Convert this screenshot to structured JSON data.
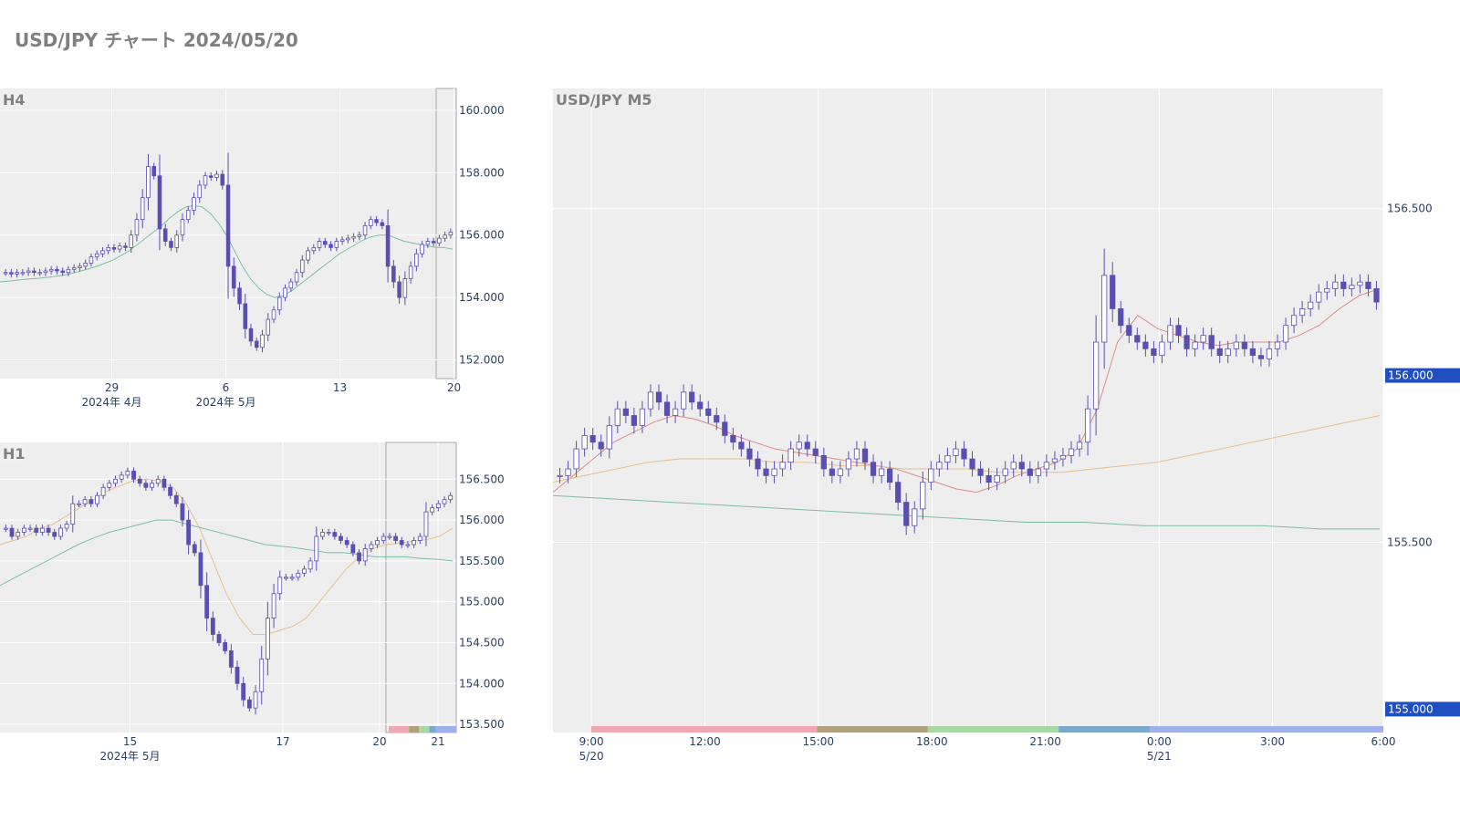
{
  "page": {
    "title": "USD/JPY チャート 2024/05/20"
  },
  "colors": {
    "candle": "#5a4fb0",
    "ma_short": "#e08a8a",
    "ma_mid": "#e8c08a",
    "ma_long": "#7ec0a0",
    "badge": "#1f4fc0",
    "session_bands": [
      "#f0a8b0",
      "#b0a080",
      "#a8d8a8",
      "#7aa8c8",
      "#a0b0ec"
    ]
  },
  "chart_data": [
    {
      "id": "h4",
      "type": "candlestick",
      "title": "H4",
      "ylim": [
        151.4,
        160.7
      ],
      "y_ticks": [
        152.0,
        154.0,
        156.0,
        158.0,
        160.0
      ],
      "y_tick_labels": [
        "152.000",
        "154.000",
        "156.000",
        "158.000",
        "160.000"
      ],
      "x_ticks": [
        {
          "label": "29",
          "sub": "2024年 4月",
          "pos": 0.245
        },
        {
          "label": "6",
          "sub": "2024年 5月",
          "pos": 0.495
        },
        {
          "label": "13",
          "sub": "",
          "pos": 0.745
        },
        {
          "label": "20",
          "sub": "",
          "pos": 0.995
        }
      ],
      "close_series": [
        154.8,
        154.75,
        154.8,
        154.8,
        154.85,
        154.8,
        154.8,
        154.85,
        154.9,
        154.85,
        154.8,
        154.9,
        154.95,
        155.0,
        155.1,
        155.3,
        155.4,
        155.5,
        155.6,
        155.55,
        155.65,
        155.6,
        156.0,
        156.5,
        157.2,
        158.2,
        157.9,
        156.2,
        155.8,
        155.6,
        156.0,
        156.5,
        156.8,
        157.2,
        157.6,
        157.9,
        157.85,
        157.95,
        157.6,
        155.0,
        154.3,
        153.8,
        153.0,
        152.6,
        152.4,
        152.8,
        153.3,
        153.6,
        154.0,
        154.3,
        154.5,
        154.8,
        155.2,
        155.5,
        155.6,
        155.8,
        155.7,
        155.6,
        155.8,
        155.85,
        155.9,
        155.95,
        156.0,
        156.3,
        156.5,
        156.4,
        156.3,
        155.0,
        154.5,
        154.0,
        154.6,
        155.0,
        155.4,
        155.7,
        155.8,
        155.75,
        155.9,
        156.0,
        156.1
      ],
      "ma_series": [
        {
          "name": "",
          "color_key": "ma_long",
          "values": [
            154.5,
            154.52,
            154.55,
            154.58,
            154.6,
            154.62,
            154.65,
            154.68,
            154.72,
            154.78,
            154.85,
            154.92,
            155.0,
            155.1,
            155.2,
            155.35,
            155.5,
            155.7,
            155.9,
            156.1,
            156.3,
            156.55,
            156.75,
            156.9,
            156.95,
            156.9,
            156.7,
            156.4,
            156.0,
            155.5,
            155.0,
            154.6,
            154.3,
            154.1,
            154.0,
            154.05,
            154.2,
            154.4,
            154.6,
            154.8,
            155.0,
            155.2,
            155.4,
            155.55,
            155.7,
            155.85,
            155.95,
            156.0,
            156.0,
            155.9,
            155.8,
            155.75,
            155.7,
            155.65,
            155.6,
            155.6,
            155.55
          ]
        }
      ]
    },
    {
      "id": "h1",
      "type": "candlestick",
      "title": "H1",
      "ylim": [
        153.4,
        156.95
      ],
      "y_ticks": [
        153.5,
        154.0,
        154.5,
        155.0,
        155.5,
        156.0,
        156.5
      ],
      "y_tick_labels": [
        "153.500",
        "154.000",
        "154.500",
        "155.000",
        "155.500",
        "156.000",
        "156.500"
      ],
      "x_ticks": [
        {
          "label": "15",
          "sub": "2024年 5月",
          "pos": 0.285
        },
        {
          "label": "17",
          "sub": "",
          "pos": 0.62
        },
        {
          "label": "20",
          "sub": "",
          "pos": 0.832
        },
        {
          "label": "21",
          "sub": "",
          "pos": 0.96
        }
      ],
      "close_series": [
        155.9,
        155.8,
        155.85,
        155.9,
        155.9,
        155.85,
        155.9,
        155.85,
        155.8,
        155.9,
        155.95,
        156.2,
        156.2,
        156.25,
        156.2,
        156.3,
        156.4,
        156.45,
        156.5,
        156.55,
        156.6,
        156.5,
        156.45,
        156.4,
        156.45,
        156.5,
        156.4,
        156.3,
        156.2,
        156.0,
        155.7,
        155.6,
        155.2,
        154.8,
        154.6,
        154.5,
        154.4,
        154.2,
        154.0,
        153.8,
        153.7,
        153.9,
        154.3,
        154.8,
        155.1,
        155.3,
        155.3,
        155.3,
        155.35,
        155.4,
        155.5,
        155.8,
        155.85,
        155.85,
        155.8,
        155.75,
        155.7,
        155.6,
        155.5,
        155.65,
        155.7,
        155.75,
        155.8,
        155.8,
        155.75,
        155.7,
        155.7,
        155.75,
        155.8,
        156.1,
        156.15,
        156.2,
        156.25,
        156.3
      ],
      "ma_series": [
        {
          "name": "",
          "color_key": "ma_mid",
          "values": [
            155.7,
            155.75,
            155.8,
            155.9,
            155.95,
            156.05,
            156.15,
            156.25,
            156.35,
            156.42,
            156.48,
            156.5,
            156.48,
            156.4,
            156.2,
            155.9,
            155.5,
            155.1,
            154.8,
            154.6,
            154.6,
            154.65,
            154.7,
            154.8,
            155.0,
            155.2,
            155.4,
            155.55,
            155.65,
            155.7,
            155.72,
            155.74,
            155.76,
            155.8,
            155.9
          ]
        },
        {
          "name": "",
          "color_key": "ma_long",
          "values": [
            155.2,
            155.3,
            155.4,
            155.5,
            155.6,
            155.7,
            155.78,
            155.85,
            155.9,
            155.95,
            156.0,
            156.0,
            155.95,
            155.9,
            155.85,
            155.8,
            155.75,
            155.7,
            155.68,
            155.66,
            155.63,
            155.6,
            155.6,
            155.58,
            155.55,
            155.55,
            155.55,
            155.53,
            155.52,
            155.5
          ]
        }
      ]
    },
    {
      "id": "m5",
      "type": "candlestick",
      "title": "USD/JPY M5",
      "ylim": [
        154.93,
        156.86
      ],
      "y_ticks": [
        155.5,
        156.5
      ],
      "y_tick_labels": [
        "155.500",
        "156.500"
      ],
      "badges": [
        {
          "label": "156.000",
          "value": 156.0
        },
        {
          "label": "155.000",
          "value": 155.0
        }
      ],
      "x_ticks": [
        {
          "label": "9:00",
          "sub": "5/20",
          "pos": 0.0463
        },
        {
          "label": "12:00",
          "sub": "",
          "pos": 0.183
        },
        {
          "label": "15:00",
          "sub": "",
          "pos": 0.3195
        },
        {
          "label": "18:00",
          "sub": "",
          "pos": 0.4564
        },
        {
          "label": "21:00",
          "sub": "",
          "pos": 0.593
        },
        {
          "label": "0:00",
          "sub": "5/21",
          "pos": 0.73
        },
        {
          "label": "3:00",
          "sub": "",
          "pos": 0.8665
        },
        {
          "label": "6:00",
          "sub": "",
          "pos": 1.0
        }
      ],
      "close_series": [
        155.7,
        155.72,
        155.78,
        155.82,
        155.8,
        155.78,
        155.85,
        155.9,
        155.88,
        155.85,
        155.9,
        155.95,
        155.92,
        155.88,
        155.9,
        155.95,
        155.92,
        155.9,
        155.88,
        155.86,
        155.82,
        155.8,
        155.78,
        155.75,
        155.72,
        155.7,
        155.72,
        155.74,
        155.78,
        155.8,
        155.78,
        155.76,
        155.72,
        155.7,
        155.72,
        155.75,
        155.78,
        155.74,
        155.7,
        155.72,
        155.68,
        155.62,
        155.55,
        155.6,
        155.68,
        155.72,
        155.74,
        155.76,
        155.78,
        155.75,
        155.72,
        155.7,
        155.68,
        155.7,
        155.72,
        155.74,
        155.72,
        155.7,
        155.72,
        155.74,
        155.75,
        155.76,
        155.78,
        155.8,
        155.9,
        156.1,
        156.3,
        156.2,
        156.15,
        156.12,
        156.1,
        156.08,
        156.06,
        156.1,
        156.15,
        156.12,
        156.08,
        156.1,
        156.12,
        156.08,
        156.06,
        156.08,
        156.1,
        156.08,
        156.06,
        156.05,
        156.08,
        156.1,
        156.15,
        156.18,
        156.2,
        156.22,
        156.25,
        156.26,
        156.28,
        156.26,
        156.27,
        156.28,
        156.26,
        156.22
      ],
      "ma_series": [
        {
          "name": "",
          "color_key": "ma_short",
          "values": [
            155.65,
            155.7,
            155.75,
            155.8,
            155.83,
            155.86,
            155.88,
            155.87,
            155.85,
            155.82,
            155.8,
            155.78,
            155.77,
            155.76,
            155.75,
            155.74,
            155.73,
            155.72,
            155.7,
            155.68,
            155.66,
            155.65,
            155.67,
            155.7,
            155.72,
            155.74,
            155.78,
            155.9,
            156.1,
            156.18,
            156.14,
            156.12,
            156.1,
            156.09,
            156.1,
            156.1,
            156.1,
            156.12,
            156.15,
            156.2,
            156.24,
            156.26
          ]
        },
        {
          "name": "",
          "color_key": "ma_mid",
          "values": [
            155.68,
            155.7,
            155.72,
            155.74,
            155.75,
            155.75,
            155.75,
            155.74,
            155.74,
            155.73,
            155.73,
            155.72,
            155.72,
            155.72,
            155.71,
            155.71,
            155.71,
            155.72,
            155.73,
            155.74,
            155.76,
            155.78,
            155.8,
            155.82,
            155.84,
            155.86,
            155.88
          ]
        },
        {
          "name": "",
          "color_key": "ma_long",
          "values": [
            155.64,
            155.63,
            155.62,
            155.61,
            155.6,
            155.59,
            155.58,
            155.57,
            155.56,
            155.56,
            155.55,
            155.55,
            155.55,
            155.54,
            155.54
          ]
        }
      ]
    }
  ]
}
